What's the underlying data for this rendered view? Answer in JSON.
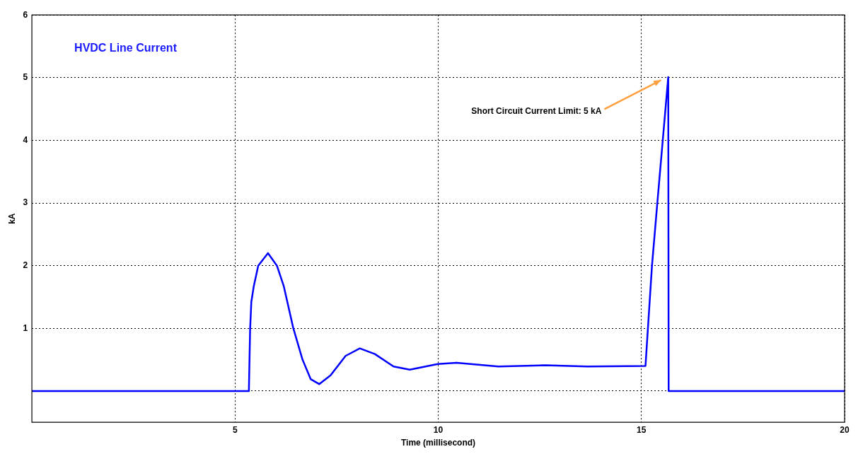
{
  "chart_data": {
    "type": "line",
    "title": "HVDC Line Current",
    "xlabel": "Time (millisecond)",
    "ylabel": "kA",
    "xlim": [
      0,
      20
    ],
    "xticks": [
      5,
      10,
      15,
      20
    ],
    "ylim": [
      -0.5,
      6
    ],
    "yticks": [
      {
        "value": 0,
        "label": null
      },
      1,
      2,
      3,
      4,
      5,
      6
    ],
    "grid": true,
    "legend": false,
    "marker": "none",
    "line_style": "solid",
    "annotations": [
      "Short Circuit Current Limit: 5 kA"
    ],
    "series": [
      {
        "color": "#0000ff",
        "x": [
          0,
          5.34,
          5.37,
          5.4,
          5.46,
          5.57,
          5.81,
          6.03,
          6.2,
          6.43,
          6.66,
          6.86,
          7.07,
          7.35,
          7.72,
          8.07,
          8.44,
          8.9,
          9.3,
          9.99,
          10.45,
          11.48,
          12.63,
          13.67,
          15.1,
          15.26,
          15.39,
          15.66,
          15.67,
          20
        ],
        "values": [
          0,
          0,
          0.98,
          1.42,
          1.67,
          2.0,
          2.2,
          2.0,
          1.67,
          1.01,
          0.5,
          0.19,
          0.11,
          0.25,
          0.56,
          0.68,
          0.59,
          0.39,
          0.34,
          0.43,
          0.45,
          0.39,
          0.41,
          0.39,
          0.4,
          2.0,
          2.99,
          5.01,
          0,
          0
        ]
      }
    ]
  }
}
